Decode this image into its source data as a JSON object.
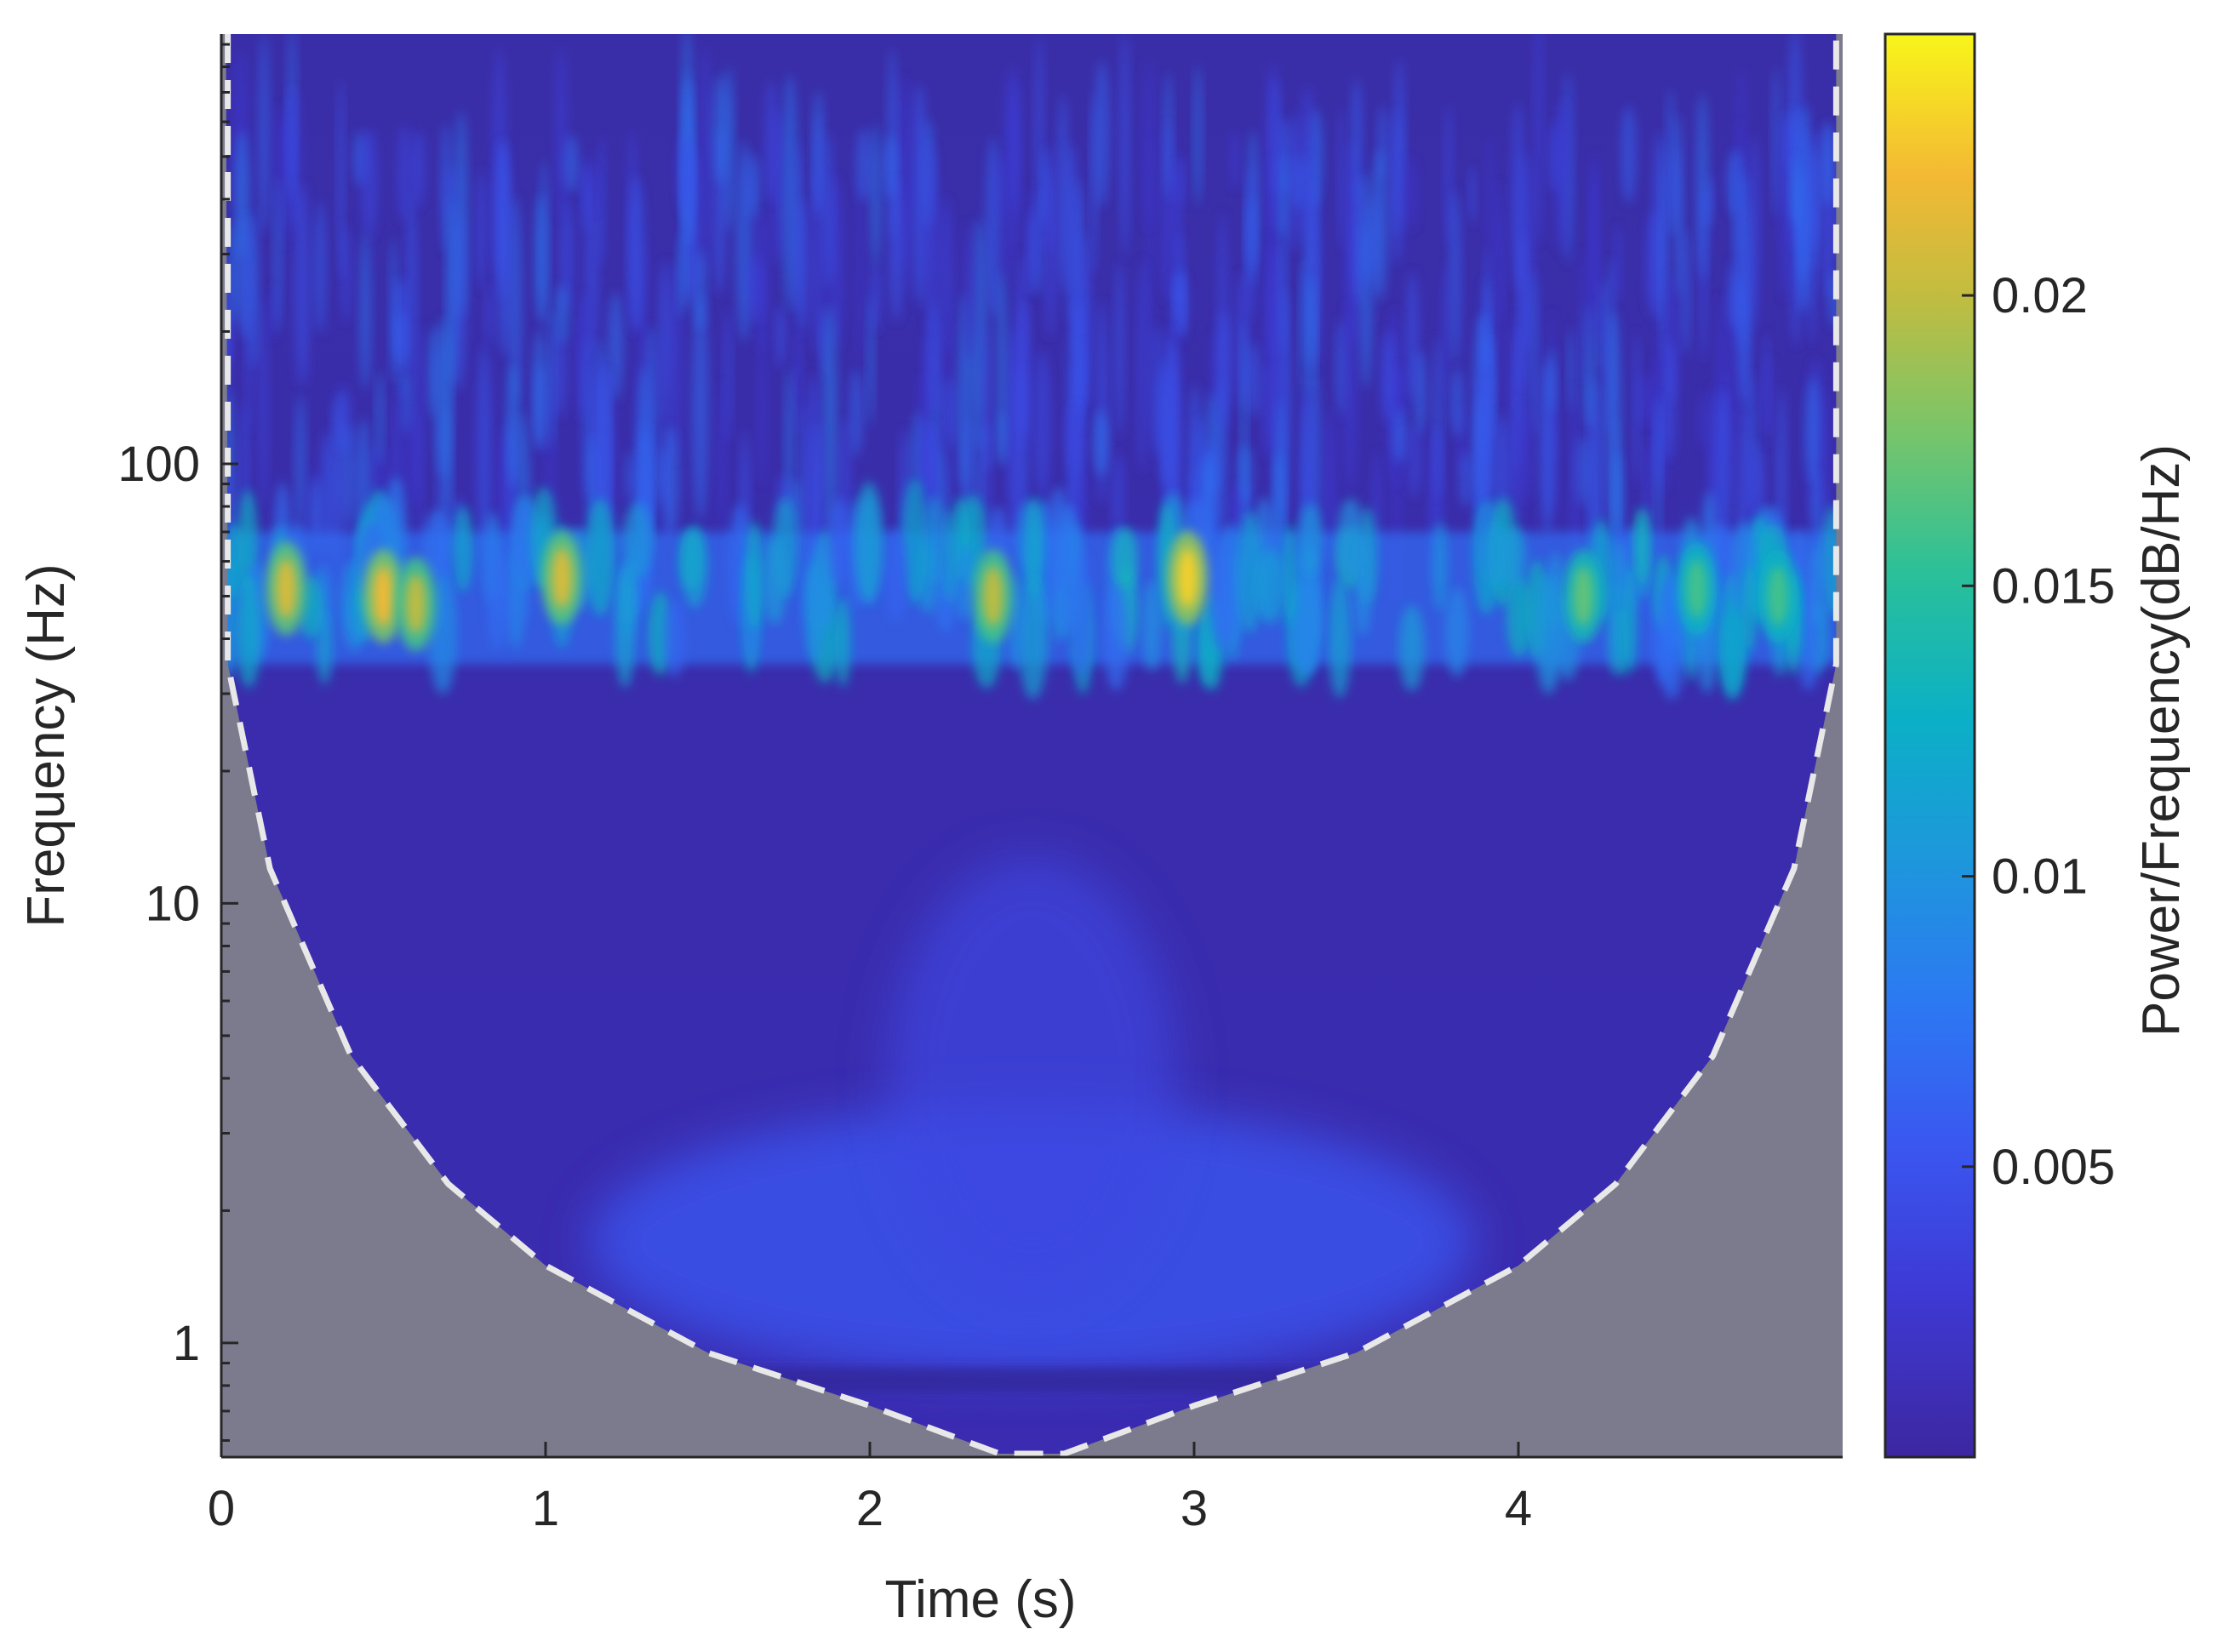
{
  "chart_data": {
    "type": "heatmap",
    "subtype": "wavelet-scalogram",
    "title": "",
    "xlabel": "Time (s)",
    "ylabel": "Frequency (Hz)",
    "xlim": [
      0,
      5
    ],
    "ylim": [
      0.55,
      950
    ],
    "y_scale": "log",
    "x_ticks": [
      0,
      1,
      2,
      3,
      4
    ],
    "x_tick_labels": [
      "0",
      "1",
      "2",
      "3",
      "4"
    ],
    "y_ticks": [
      1,
      10,
      100
    ],
    "y_tick_labels": [
      "1",
      "10",
      "100"
    ],
    "colorbar": {
      "label": "Power/Frequency(dB/Hz)",
      "colormap": "parula",
      "range": [
        0,
        0.0245
      ],
      "ticks": [
        0.005,
        0.01,
        0.015,
        0.02
      ],
      "tick_labels": [
        "0.005",
        "0.01",
        "0.015",
        "0.02"
      ]
    },
    "cone_of_influence": {
      "style": "dashed",
      "color": "#e8e8e8",
      "shaded_color": "#7c7b8e",
      "points": [
        {
          "t": 0.02,
          "f": 35
        },
        {
          "t": 0.15,
          "f": 12
        },
        {
          "t": 0.4,
          "f": 4.5
        },
        {
          "t": 0.7,
          "f": 2.3
        },
        {
          "t": 1.0,
          "f": 1.5
        },
        {
          "t": 1.5,
          "f": 0.95
        },
        {
          "t": 2.0,
          "f": 0.72
        },
        {
          "t": 2.4,
          "f": 0.56
        },
        {
          "t": 2.6,
          "f": 0.56
        },
        {
          "t": 3.0,
          "f": 0.72
        },
        {
          "t": 3.5,
          "f": 0.95
        },
        {
          "t": 4.0,
          "f": 1.5
        },
        {
          "t": 4.3,
          "f": 2.3
        },
        {
          "t": 4.6,
          "f": 4.5
        },
        {
          "t": 4.85,
          "f": 12
        },
        {
          "t": 4.98,
          "f": 35
        }
      ]
    },
    "power_bands": [
      {
        "f_range": [
          35,
          70
        ],
        "level": 0.009,
        "note_peaks": [
          {
            "t": 0.2,
            "f": 52,
            "value": 0.021
          },
          {
            "t": 0.5,
            "f": 50,
            "value": 0.022
          },
          {
            "t": 0.6,
            "f": 48,
            "value": 0.02
          },
          {
            "t": 1.05,
            "f": 55,
            "value": 0.021
          },
          {
            "t": 2.38,
            "f": 50,
            "value": 0.02
          },
          {
            "t": 2.98,
            "f": 55,
            "value": 0.023
          },
          {
            "t": 4.2,
            "f": 50,
            "value": 0.017
          },
          {
            "t": 4.55,
            "f": 52,
            "value": 0.016
          },
          {
            "t": 4.8,
            "f": 50,
            "value": 0.016
          }
        ]
      },
      {
        "f_range": [
          70,
          950
        ],
        "level": 0.004
      },
      {
        "f_range": [
          1.2,
          4
        ],
        "center_t": 2.5,
        "level": 0.005
      },
      {
        "f_range": [
          0.55,
          35
        ],
        "level": 0.001
      }
    ]
  }
}
